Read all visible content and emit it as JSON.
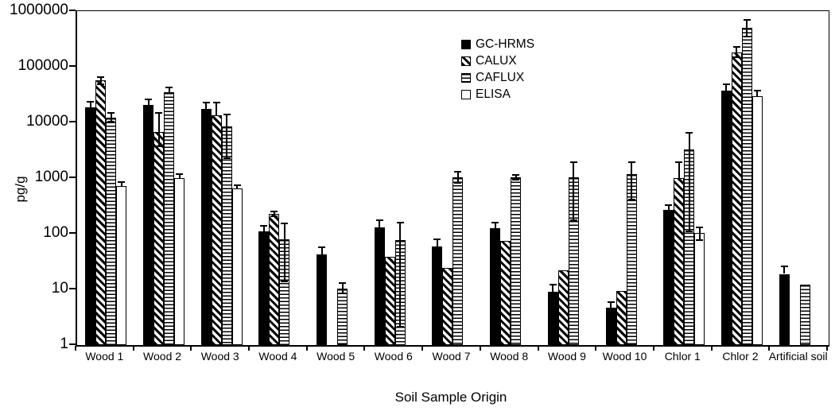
{
  "chart_data": {
    "type": "bar",
    "title": "",
    "xlabel": "Soil Sample Origin",
    "ylabel": "pg/g",
    "y_scale": "log",
    "ylim": [
      1,
      1000000
    ],
    "y_ticks": [
      1,
      10,
      100,
      1000,
      10000,
      100000,
      1000000
    ],
    "y_tick_labels": [
      "1",
      "10",
      "100",
      "1000",
      "10000",
      "100000",
      "1000000"
    ],
    "grid": false,
    "legend_position": "top-center",
    "plot_border": "full-box",
    "colors": {
      "foreground": "#000000",
      "background": "#ffffff"
    },
    "categories": [
      "Wood 1",
      "Wood 2",
      "Wood 3",
      "Wood 4",
      "Wood 5",
      "Wood 6",
      "Wood 7",
      "Wood 8",
      "Wood 9",
      "Wood 10",
      "Chlor 1",
      "Chlor 2",
      "Artificial soil"
    ],
    "series": [
      {
        "name": "GC-HRMS",
        "pattern": "solid",
        "values": [
          18500,
          20500,
          17500,
          110,
          43,
          130,
          60,
          125,
          9,
          4.7,
          265,
          37000,
          19
        ],
        "err_lo": [
          null,
          null,
          null,
          null,
          null,
          null,
          null,
          null,
          null,
          null,
          null,
          null,
          null
        ],
        "err_hi": [
          23500,
          26000,
          23000,
          140,
          57,
          175,
          80,
          160,
          12,
          6,
          330,
          48000,
          26
        ]
      },
      {
        "name": "CALUX",
        "pattern": "diagonal",
        "values": [
          57000,
          6700,
          13500,
          230,
          null,
          38,
          24,
          75,
          22,
          9.5,
          1000,
          180000,
          null
        ],
        "err_lo": [
          48000,
          3700,
          null,
          208,
          null,
          null,
          null,
          null,
          null,
          null,
          null,
          150000,
          null
        ],
        "err_hi": [
          66000,
          14800,
          23000,
          252,
          null,
          null,
          null,
          null,
          null,
          null,
          1950,
          230000,
          null
        ]
      },
      {
        "name": "CAFLUX",
        "pattern": "hlines",
        "values": [
          12300,
          35000,
          8400,
          80,
          10.5,
          78,
          1050,
          1050,
          1025,
          1170,
          3300,
          500000,
          12
        ],
        "err_lo": [
          10500,
          null,
          2250,
          14,
          8.5,
          2.1,
          815,
          950,
          175,
          410,
          110,
          350000,
          null
        ],
        "err_hi": [
          14800,
          43000,
          14000,
          155,
          13,
          157,
          1300,
          1150,
          1950,
          1900,
          6500,
          700000,
          null
        ]
      },
      {
        "name": "ELISA",
        "pattern": "empty",
        "values": [
          720,
          1000,
          650,
          null,
          null,
          null,
          null,
          null,
          null,
          null,
          105,
          30000,
          null
        ],
        "err_lo": [
          null,
          null,
          null,
          null,
          null,
          null,
          null,
          null,
          null,
          null,
          78,
          null,
          null
        ],
        "err_hi": [
          840,
          1170,
          750,
          null,
          null,
          null,
          null,
          null,
          null,
          null,
          130,
          37000,
          null
        ]
      }
    ]
  }
}
